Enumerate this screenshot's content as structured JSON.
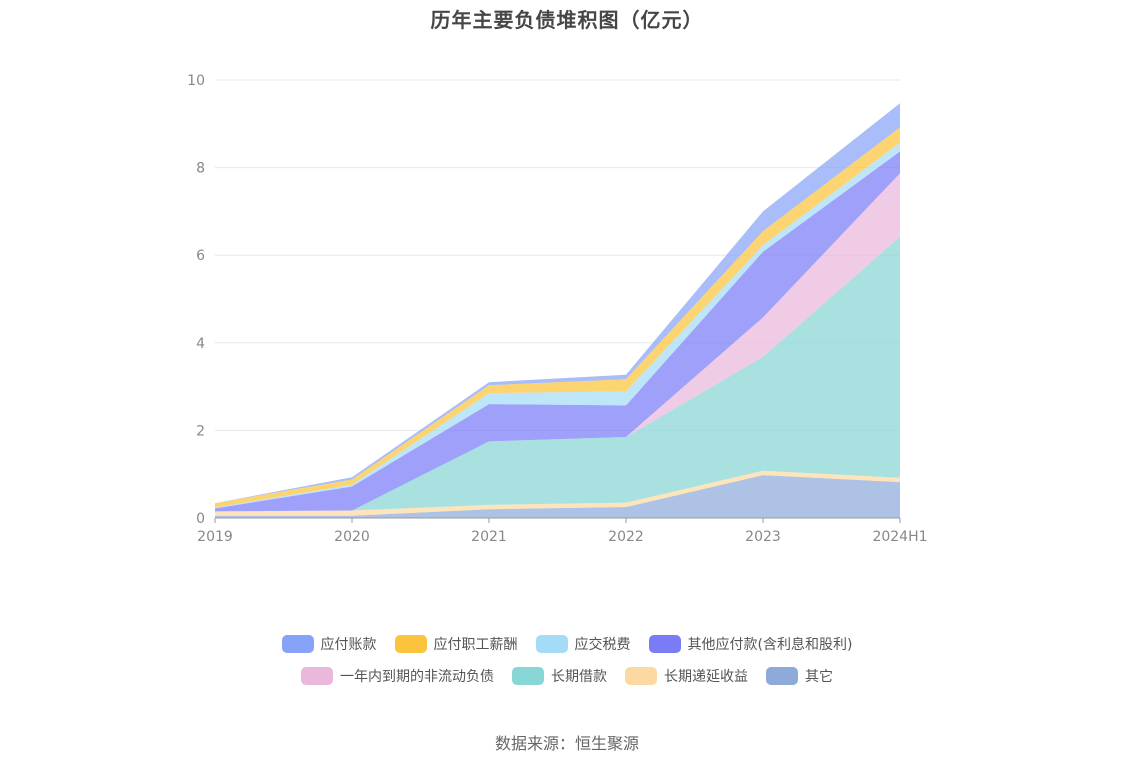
{
  "chart_data": {
    "type": "area",
    "stacked": true,
    "title": "历年主要负债堆积图（亿元）",
    "source": "数据来源：恒生聚源",
    "categories": [
      "2019",
      "2020",
      "2021",
      "2022",
      "2023",
      "2024H1"
    ],
    "ylim": [
      0,
      10
    ],
    "yticks": [
      "0",
      "2",
      "4",
      "6",
      "8",
      "10"
    ],
    "grid": true,
    "legend_position": "bottom",
    "series": [
      {
        "name": "其它",
        "color": "#8eaad9",
        "values": [
          0.05,
          0.05,
          0.2,
          0.25,
          0.98,
          0.82
        ]
      },
      {
        "name": "长期递延收益",
        "color": "#fcd9a0",
        "values": [
          0.1,
          0.12,
          0.1,
          0.1,
          0.1,
          0.1
        ]
      },
      {
        "name": "长期借款",
        "color": "#88d6d6",
        "values": [
          0.0,
          0.0,
          1.45,
          1.5,
          2.6,
          5.5
        ]
      },
      {
        "name": "一年内到期的非流动负债",
        "color": "#eab7dd",
        "values": [
          0.0,
          0.0,
          0.0,
          0.0,
          0.9,
          1.45
        ]
      },
      {
        "name": "其他应付款(含利息和股利)",
        "color": "#7a7cf6",
        "values": [
          0.07,
          0.55,
          0.85,
          0.72,
          1.5,
          0.5
        ]
      },
      {
        "name": "应交税费",
        "color": "#a4dcf7",
        "values": [
          0.02,
          0.04,
          0.25,
          0.32,
          0.15,
          0.2
        ]
      },
      {
        "name": "应付职工薪酬",
        "color": "#fcc43c",
        "values": [
          0.1,
          0.12,
          0.18,
          0.28,
          0.32,
          0.35
        ]
      },
      {
        "name": "应付账款",
        "color": "#87a3f7",
        "values": [
          0.0,
          0.05,
          0.07,
          0.1,
          0.45,
          0.55
        ]
      }
    ],
    "legend": [
      [
        "应付账款",
        "应付职工薪酬",
        "应交税费",
        "其他应付款(含利息和股利)"
      ],
      [
        "一年内到期的非流动负债",
        "长期借款",
        "长期递延收益",
        "其它"
      ]
    ]
  }
}
